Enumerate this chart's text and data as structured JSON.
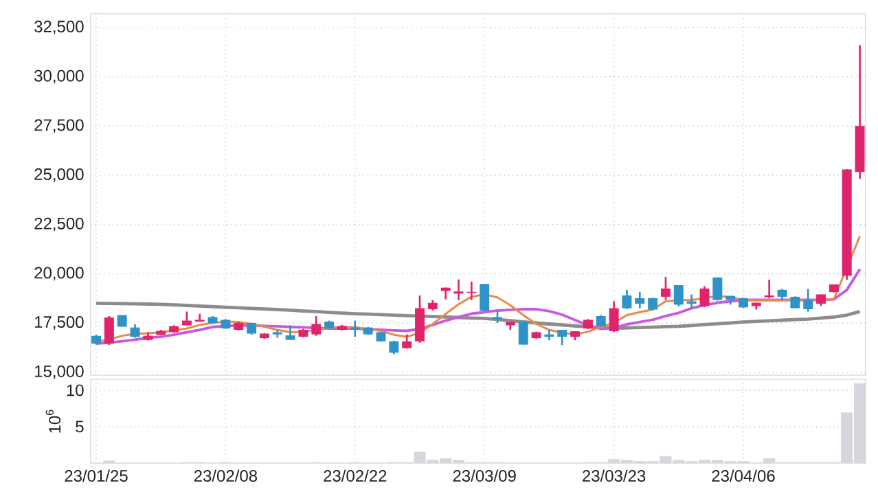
{
  "chart_data": [
    {
      "type": "candlestick",
      "categories": [
        null,
        null,
        null,
        null,
        null,
        null,
        null,
        null,
        null,
        null,
        null,
        null,
        null,
        null,
        null,
        null,
        null,
        null,
        null,
        null,
        null,
        null,
        null,
        null,
        null,
        null,
        null,
        null,
        null,
        null,
        null,
        null,
        null,
        null,
        null,
        null,
        null,
        null,
        null,
        null,
        null,
        null,
        null,
        null,
        null,
        null,
        null,
        null,
        null,
        null,
        null,
        null,
        null,
        null,
        null,
        null,
        null,
        null,
        null,
        null
      ],
      "ohlc": [
        [
          16850,
          16900,
          16400,
          16450
        ],
        [
          16450,
          17850,
          16380,
          17780
        ],
        [
          17900,
          17900,
          17310,
          17310
        ],
        [
          17270,
          17430,
          16750,
          16800
        ],
        [
          16640,
          17030,
          16610,
          16850
        ],
        [
          16900,
          17150,
          16880,
          17100
        ],
        [
          17030,
          17380,
          17000,
          17340
        ],
        [
          17380,
          18080,
          17380,
          17620
        ],
        [
          17570,
          17970,
          17570,
          17660
        ],
        [
          17800,
          17850,
          17470,
          17500
        ],
        [
          17660,
          17700,
          17200,
          17220
        ],
        [
          17150,
          17550,
          17120,
          17500
        ],
        [
          17500,
          17520,
          16900,
          16960
        ],
        [
          16730,
          16980,
          16700,
          16960
        ],
        [
          17030,
          17150,
          16750,
          16920
        ],
        [
          16870,
          17380,
          16640,
          16640
        ],
        [
          16800,
          17200,
          16780,
          17150
        ],
        [
          16920,
          17850,
          16850,
          17450
        ],
        [
          17570,
          17620,
          17200,
          17220
        ],
        [
          17150,
          17400,
          17120,
          17340
        ],
        [
          17270,
          17620,
          16800,
          17150
        ],
        [
          17270,
          17300,
          16900,
          16920
        ],
        [
          17030,
          17050,
          16550,
          16570
        ],
        [
          16570,
          16600,
          15920,
          15990
        ],
        [
          16220,
          16920,
          16200,
          16570
        ],
        [
          16570,
          18900,
          16500,
          18250
        ],
        [
          18200,
          18660,
          18130,
          18520
        ],
        [
          19130,
          19300,
          18700,
          19290
        ],
        [
          18990,
          19710,
          18660,
          19100
        ],
        [
          19030,
          19600,
          18660,
          19080
        ],
        [
          19480,
          19480,
          18090,
          18130
        ],
        [
          17800,
          18090,
          17500,
          17690
        ],
        [
          17380,
          17550,
          17150,
          17550
        ],
        [
          17550,
          17550,
          16400,
          16400
        ],
        [
          16730,
          17060,
          16700,
          17030
        ],
        [
          16920,
          17150,
          16620,
          16800
        ],
        [
          17150,
          17150,
          16380,
          16800
        ],
        [
          16800,
          17080,
          16620,
          17080
        ],
        [
          17220,
          17700,
          17200,
          17660
        ],
        [
          17850,
          17900,
          17300,
          17330
        ],
        [
          17080,
          18600,
          17030,
          18250
        ],
        [
          18900,
          19180,
          18200,
          18250
        ],
        [
          18760,
          19070,
          18250,
          18480
        ],
        [
          18760,
          18780,
          18150,
          18180
        ],
        [
          18830,
          19840,
          18670,
          19250
        ],
        [
          19420,
          19420,
          18340,
          18430
        ],
        [
          18600,
          18950,
          18200,
          18480
        ],
        [
          18360,
          19370,
          18300,
          19250
        ],
        [
          19810,
          19810,
          18640,
          18670
        ],
        [
          18880,
          18880,
          18430,
          18670
        ],
        [
          18760,
          18780,
          18270,
          18290
        ],
        [
          18360,
          18530,
          18180,
          18530
        ],
        [
          18810,
          19700,
          18760,
          18900
        ],
        [
          19180,
          19230,
          18670,
          18830
        ],
        [
          18830,
          18850,
          18250,
          18250
        ],
        [
          18670,
          19230,
          18080,
          18200
        ],
        [
          18480,
          18950,
          18360,
          18950
        ],
        [
          19070,
          19460,
          19040,
          19460
        ],
        [
          19900,
          25300,
          19700,
          25300
        ],
        [
          25170,
          31600,
          24820,
          27500
        ]
      ],
      "colors": [
        "#2e93c8",
        "#e0246c",
        "#2e93c8",
        "#2e93c8",
        "#e0246c",
        "#e0246c",
        "#e0246c",
        "#e0246c",
        "#e0246c",
        "#2e93c8",
        "#2e93c8",
        "#e0246c",
        "#2e93c8",
        "#e0246c",
        "#2e93c8",
        "#2e93c8",
        "#e0246c",
        "#e0246c",
        "#2e93c8",
        "#e0246c",
        "#2e93c8",
        "#2e93c8",
        "#2e93c8",
        "#2e93c8",
        "#e0246c",
        "#e0246c",
        "#e0246c",
        "#e0246c",
        "#e0246c",
        "#e0246c",
        "#2e93c8",
        "#2e93c8",
        "#e0246c",
        "#2e93c8",
        "#e0246c",
        "#2e93c8",
        "#2e93c8",
        "#e0246c",
        "#e0246c",
        "#2e93c8",
        "#e0246c",
        "#2e93c8",
        "#2e93c8",
        "#2e93c8",
        "#e0246c",
        "#2e93c8",
        "#2e93c8",
        "#e0246c",
        "#2e93c8",
        "#2e93c8",
        "#2e93c8",
        "#e0246c",
        "#e0246c",
        "#2e93c8",
        "#2e93c8",
        "#2e93c8",
        "#e0246c",
        "#e0246c",
        "#e0246c",
        "#e0246c"
      ],
      "series": [
        {
          "type": "line",
          "color": "#8c8c8c",
          "values": [
            18500,
            18490,
            18480,
            18470,
            18460,
            18450,
            18420,
            18390,
            18360,
            18330,
            18300,
            18270,
            18240,
            18210,
            18180,
            18150,
            18110,
            18080,
            18040,
            18000,
            17970,
            17950,
            17920,
            17900,
            17870,
            17850,
            17830,
            17800,
            17780,
            17750,
            17730,
            17680,
            17620,
            17560,
            17500,
            17450,
            17400,
            17350,
            17300,
            17260,
            17230,
            17250,
            17270,
            17290,
            17310,
            17330,
            17370,
            17420,
            17460,
            17500,
            17550,
            17580,
            17610,
            17640,
            17670,
            17700,
            17750,
            17800,
            17900,
            18080
          ]
        },
        {
          "type": "line",
          "color": "#c95ae0",
          "values": [
            16450,
            16500,
            16570,
            16650,
            16750,
            16800,
            16900,
            17030,
            17150,
            17300,
            17350,
            17380,
            17380,
            17350,
            17330,
            17300,
            17280,
            17250,
            17220,
            17220,
            17220,
            17180,
            17150,
            17120,
            17100,
            17200,
            17400,
            17620,
            17800,
            17970,
            18050,
            18130,
            18170,
            18200,
            18200,
            18100,
            17920,
            17650,
            17380,
            17200,
            17250,
            17430,
            17550,
            17660,
            17850,
            18010,
            18250,
            18400,
            18530,
            18600,
            18670,
            18670,
            18670,
            18670,
            18670,
            18670,
            18670,
            18700,
            19180,
            20230
          ]
        },
        {
          "type": "line",
          "color": "#e8894a",
          "values": [
            16570,
            16650,
            16850,
            16950,
            16980,
            17030,
            17120,
            17220,
            17400,
            17500,
            17570,
            17550,
            17450,
            17310,
            17150,
            17030,
            17060,
            17150,
            17250,
            17310,
            17280,
            17180,
            17100,
            16900,
            16800,
            17000,
            17450,
            17960,
            18450,
            18830,
            18950,
            18800,
            18400,
            17900,
            17450,
            17150,
            17000,
            16920,
            17050,
            17300,
            17500,
            17900,
            18050,
            18180,
            18600,
            18650,
            18670,
            18750,
            18880,
            18800,
            18670,
            18650,
            18650,
            18670,
            18650,
            18650,
            18650,
            18720,
            null,
            21900
          ]
        }
      ],
      "ylim": [
        14850,
        33200
      ],
      "yticks": [
        {
          "value": 15000,
          "label": "15,000"
        },
        {
          "value": 17500,
          "label": "17,500"
        },
        {
          "value": 20000,
          "label": "20,000"
        },
        {
          "value": 22500,
          "label": "22,500"
        },
        {
          "value": 25000,
          "label": "25,000"
        },
        {
          "value": 27500,
          "label": "27,500"
        },
        {
          "value": 30000,
          "label": "30,000"
        },
        {
          "value": 32500,
          "label": "32,500"
        }
      ],
      "grid": true,
      "tick_labels": "y"
    },
    {
      "type": "bar",
      "categories": [
        "23/01/25",
        null,
        null,
        null,
        null,
        null,
        null,
        null,
        null,
        null,
        "23/02/08",
        null,
        null,
        null,
        null,
        null,
        null,
        null,
        null,
        null,
        "23/02/22",
        null,
        null,
        null,
        null,
        null,
        null,
        null,
        null,
        null,
        "23/03/09",
        null,
        null,
        null,
        null,
        null,
        null,
        null,
        null,
        null,
        "23/03/23",
        null,
        null,
        null,
        null,
        null,
        null,
        null,
        null,
        null,
        "23/04/06",
        null,
        null,
        null,
        null,
        null,
        null,
        null,
        null,
        null
      ],
      "values": [
        0,
        0.3,
        0,
        0,
        0,
        0,
        0,
        0.1,
        0.1,
        0,
        0.1,
        0,
        0,
        0,
        0,
        0,
        0,
        0.1,
        0,
        0,
        0.1,
        0,
        0,
        0.1,
        0.1,
        1.5,
        0.4,
        0.6,
        0.4,
        0.1,
        0.1,
        0.1,
        0,
        0,
        0,
        0,
        0,
        0,
        0.1,
        0.1,
        0.5,
        0.4,
        0.2,
        0.2,
        0.9,
        0.4,
        0.2,
        0.4,
        0.4,
        0.2,
        0.2,
        0,
        0.6,
        0.1,
        0.1,
        0.1,
        0.1,
        0.1,
        6.9,
        10.9
      ],
      "color": "#d6d6dc",
      "ylabel": "10$^{6}$",
      "ylim": [
        0,
        11.5
      ],
      "yticks": [
        5,
        10
      ],
      "grid": true
    }
  ]
}
